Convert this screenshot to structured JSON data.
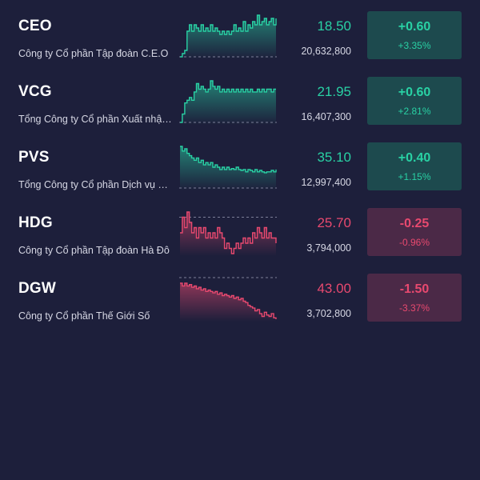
{
  "colors": {
    "background": "#1d1f3b",
    "up": "#29d1a4",
    "up_box": "#1d4a4e",
    "down": "#e8496f",
    "down_box": "#4b2947",
    "ref_line": "#7d7f98"
  },
  "stocks": [
    {
      "ticker": "CEO",
      "company": "Công ty Cổ phần Tập đoàn C.E.O",
      "price": "18.50",
      "volume": "20,632,800",
      "change": "+0.60",
      "change_pct": "+3.35%",
      "direction": "up",
      "spark": [
        17.9,
        17.95,
        18.0,
        18.3,
        18.4,
        18.3,
        18.4,
        18.35,
        18.3,
        18.4,
        18.3,
        18.35,
        18.3,
        18.4,
        18.3,
        18.35,
        18.3,
        18.25,
        18.3,
        18.25,
        18.3,
        18.25,
        18.3,
        18.4,
        18.3,
        18.35,
        18.3,
        18.45,
        18.3,
        18.4,
        18.35,
        18.45,
        18.4,
        18.55,
        18.4,
        18.45,
        18.5,
        18.4,
        18.45,
        18.5,
        18.4,
        18.5
      ]
    },
    {
      "ticker": "VCG",
      "company": "Tổng Công ty Cổ phần Xuất nhập khẩu và Xây dựng Việt Nam",
      "price": "21.95",
      "volume": "16,407,300",
      "change": "+0.60",
      "change_pct": "+2.81%",
      "direction": "up",
      "spark": [
        21.35,
        21.5,
        21.7,
        21.75,
        21.8,
        21.75,
        21.9,
        22.05,
        21.95,
        22.0,
        21.95,
        21.9,
        21.95,
        22.1,
        22.0,
        21.95,
        22.0,
        21.9,
        21.95,
        21.9,
        21.95,
        21.9,
        21.95,
        21.9,
        21.95,
        21.9,
        21.95,
        21.9,
        21.95,
        21.9,
        21.95,
        21.9,
        21.9,
        21.95,
        21.9,
        21.95,
        21.9,
        21.95,
        21.95,
        21.9,
        21.95,
        21.95
      ]
    },
    {
      "ticker": "PVS",
      "company": "Tổng Công ty Cổ phần Dịch vụ Kỹ thuật Dầu khí Việt Nam",
      "price": "35.10",
      "volume": "12,997,400",
      "change": "+0.40",
      "change_pct": "+1.15%",
      "direction": "up",
      "spark": [
        35.6,
        35.5,
        35.55,
        35.45,
        35.4,
        35.35,
        35.3,
        35.35,
        35.25,
        35.3,
        35.2,
        35.25,
        35.2,
        35.25,
        35.15,
        35.2,
        35.15,
        35.1,
        35.15,
        35.1,
        35.15,
        35.1,
        35.12,
        35.1,
        35.15,
        35.1,
        35.08,
        35.1,
        35.05,
        35.1,
        35.08,
        35.05,
        35.1,
        35.05,
        35.08,
        35.05,
        35.03,
        35.05,
        35.05,
        35.08,
        35.05,
        35.1
      ]
    },
    {
      "ticker": "HDG",
      "company": "Công ty Cổ phần Tập đoàn Hà Đô",
      "price": "25.70",
      "volume": "3,794,000",
      "change": "-0.25",
      "change_pct": "-0.96%",
      "direction": "down",
      "spark": [
        25.8,
        25.95,
        25.85,
        26.0,
        25.9,
        25.8,
        25.85,
        25.75,
        25.85,
        25.8,
        25.85,
        25.75,
        25.8,
        25.75,
        25.8,
        25.75,
        25.85,
        25.8,
        25.75,
        25.65,
        25.7,
        25.65,
        25.6,
        25.65,
        25.7,
        25.65,
        25.7,
        25.75,
        25.7,
        25.75,
        25.7,
        25.8,
        25.75,
        25.85,
        25.8,
        25.75,
        25.85,
        25.75,
        25.8,
        25.75,
        25.75,
        25.7
      ]
    },
    {
      "ticker": "DGW",
      "company": "Công ty Cổ phần Thế Giới Số",
      "price": "43.00",
      "volume": "3,702,800",
      "change": "-1.50",
      "change_pct": "-3.37%",
      "direction": "down",
      "spark": [
        44.3,
        44.2,
        44.3,
        44.2,
        44.25,
        44.15,
        44.2,
        44.1,
        44.15,
        44.05,
        44.1,
        44.0,
        44.05,
        44.0,
        43.95,
        44.0,
        43.9,
        43.95,
        43.85,
        43.9,
        43.85,
        43.8,
        43.85,
        43.75,
        43.8,
        43.7,
        43.75,
        43.65,
        43.6,
        43.5,
        43.45,
        43.4,
        43.3,
        43.35,
        43.2,
        43.1,
        43.25,
        43.15,
        43.1,
        43.2,
        43.05,
        43.0
      ]
    }
  ]
}
